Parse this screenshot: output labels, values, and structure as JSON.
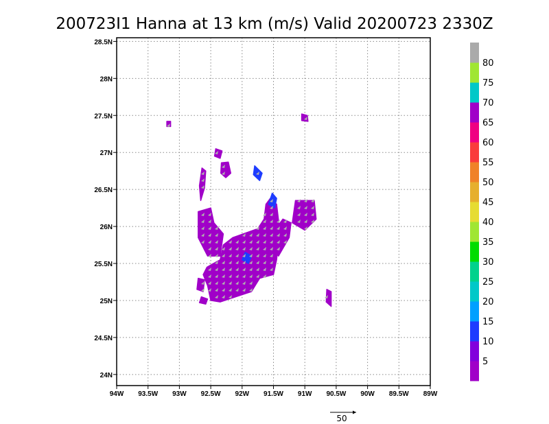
{
  "chart_data": {
    "type": "heatmap",
    "title": "200723I1 Hanna at 13 km (m/s) Valid 20200723 2330Z",
    "xlim": [
      -94,
      -89
    ],
    "ylim": [
      23.85,
      28.55
    ],
    "x_ticks": [
      {
        "value": -94,
        "label": "94W"
      },
      {
        "value": -93.5,
        "label": "93.5W"
      },
      {
        "value": -93,
        "label": "93W"
      },
      {
        "value": -92.5,
        "label": "92.5W"
      },
      {
        "value": -92,
        "label": "92W"
      },
      {
        "value": -91.5,
        "label": "91.5W"
      },
      {
        "value": -91,
        "label": "91W"
      },
      {
        "value": -90.5,
        "label": "90.5W"
      },
      {
        "value": -90,
        "label": "90W"
      },
      {
        "value": -89.5,
        "label": "89.5W"
      },
      {
        "value": -89,
        "label": "89W"
      }
    ],
    "y_ticks": [
      {
        "value": 24,
        "label": "24N"
      },
      {
        "value": 24.5,
        "label": "24.5N"
      },
      {
        "value": 25,
        "label": "25N"
      },
      {
        "value": 25.5,
        "label": "25.5N"
      },
      {
        "value": 26,
        "label": "26N"
      },
      {
        "value": 26.5,
        "label": "26.5N"
      },
      {
        "value": 27,
        "label": "27N"
      },
      {
        "value": 27.5,
        "label": "27.5N"
      },
      {
        "value": 28,
        "label": "28N"
      },
      {
        "value": 28.5,
        "label": "28.5N"
      }
    ],
    "grid": true,
    "colorbar": {
      "placement": "right",
      "bins": [
        {
          "min": 0,
          "max": 5,
          "color": "#a000c8"
        },
        {
          "min": 5,
          "max": 10,
          "color": "#8200dc"
        },
        {
          "min": 10,
          "max": 15,
          "color": "#1e3cff"
        },
        {
          "min": 15,
          "max": 20,
          "color": "#00a0ff"
        },
        {
          "min": 20,
          "max": 25,
          "color": "#00c8c8"
        },
        {
          "min": 25,
          "max": 30,
          "color": "#00d28c"
        },
        {
          "min": 30,
          "max": 35,
          "color": "#00dc00"
        },
        {
          "min": 35,
          "max": 40,
          "color": "#a0e632"
        },
        {
          "min": 40,
          "max": 45,
          "color": "#e6dc32"
        },
        {
          "min": 45,
          "max": 50,
          "color": "#e6af2d"
        },
        {
          "min": 50,
          "max": 55,
          "color": "#f08228"
        },
        {
          "min": 55,
          "max": 60,
          "color": "#fa3c3c"
        },
        {
          "min": 60,
          "max": 65,
          "color": "#f00082"
        },
        {
          "min": 65,
          "max": 70,
          "color": "#a000c8"
        },
        {
          "min": 70,
          "max": 75,
          "color": "#00c8c8"
        },
        {
          "min": 75,
          "max": 80,
          "color": "#a0e632"
        },
        {
          "min": 80,
          "max": 85,
          "color": "#aaaaaa"
        }
      ],
      "labels": [
        "5",
        "10",
        "15",
        "20",
        "25",
        "30",
        "35",
        "40",
        "45",
        "50",
        "55",
        "60",
        "65",
        "70",
        "75",
        "80"
      ]
    },
    "regions": [
      {
        "poly": [
          [
            -92.56,
            25.45
          ],
          [
            -92.35,
            25.55
          ],
          [
            -92.3,
            25.75
          ],
          [
            -92.15,
            25.85
          ],
          [
            -91.75,
            25.97
          ],
          [
            -91.65,
            26.1
          ],
          [
            -91.62,
            26.3
          ],
          [
            -91.55,
            26.38
          ],
          [
            -91.45,
            26.3
          ],
          [
            -91.4,
            25.95
          ],
          [
            -91.45,
            25.55
          ],
          [
            -91.5,
            25.35
          ],
          [
            -91.72,
            25.3
          ],
          [
            -91.85,
            25.12
          ],
          [
            -92.1,
            25.05
          ],
          [
            -92.35,
            24.98
          ],
          [
            -92.5,
            25.0
          ],
          [
            -92.55,
            25.2
          ],
          [
            -92.62,
            25.35
          ]
        ],
        "value": 4
      },
      {
        "poly": [
          [
            -92.7,
            26.2
          ],
          [
            -92.5,
            26.25
          ],
          [
            -92.45,
            26.05
          ],
          [
            -92.3,
            25.9
          ],
          [
            -92.35,
            25.6
          ],
          [
            -92.55,
            25.6
          ],
          [
            -92.7,
            25.85
          ]
        ],
        "value": 4
      },
      {
        "poly": [
          [
            -91.35,
            26.1
          ],
          [
            -91.22,
            26.05
          ],
          [
            -91.25,
            25.85
          ],
          [
            -91.42,
            25.6
          ],
          [
            -91.52,
            25.7
          ],
          [
            -91.48,
            25.95
          ]
        ],
        "value": 4
      },
      {
        "poly": [
          [
            -91.15,
            26.35
          ],
          [
            -90.85,
            26.35
          ],
          [
            -90.82,
            26.1
          ],
          [
            -91.0,
            25.95
          ],
          [
            -91.2,
            26.05
          ]
        ],
        "value": 4
      },
      {
        "poly": [
          [
            -92.64,
            26.79
          ],
          [
            -92.58,
            26.75
          ],
          [
            -92.6,
            26.52
          ],
          [
            -92.66,
            26.35
          ],
          [
            -92.68,
            26.55
          ]
        ],
        "value": 4
      },
      {
        "poly": [
          [
            -92.33,
            26.86
          ],
          [
            -92.22,
            26.87
          ],
          [
            -92.18,
            26.72
          ],
          [
            -92.26,
            26.66
          ],
          [
            -92.34,
            26.72
          ]
        ],
        "value": 4
      },
      {
        "poly": [
          [
            -92.42,
            27.05
          ],
          [
            -92.32,
            27.02
          ],
          [
            -92.35,
            26.92
          ],
          [
            -92.44,
            26.95
          ]
        ],
        "value": 4
      },
      {
        "poly": [
          [
            -91.52,
            26.45
          ],
          [
            -91.45,
            26.38
          ],
          [
            -91.48,
            26.25
          ],
          [
            -91.58,
            26.3
          ]
        ],
        "value": 12
      },
      {
        "poly": [
          [
            -91.8,
            26.82
          ],
          [
            -91.68,
            26.72
          ],
          [
            -91.72,
            26.62
          ],
          [
            -91.82,
            26.7
          ]
        ],
        "value": 12
      },
      {
        "poly": [
          [
            -91.95,
            25.65
          ],
          [
            -91.85,
            25.6
          ],
          [
            -91.9,
            25.5
          ],
          [
            -92.0,
            25.55
          ]
        ],
        "value": 12
      },
      {
        "poly": [
          [
            -90.65,
            25.15
          ],
          [
            -90.58,
            25.12
          ],
          [
            -90.58,
            24.92
          ],
          [
            -90.66,
            24.98
          ]
        ],
        "value": 4
      },
      {
        "poly": [
          [
            -92.7,
            25.3
          ],
          [
            -92.6,
            25.28
          ],
          [
            -92.62,
            25.12
          ],
          [
            -92.72,
            25.15
          ]
        ],
        "value": 4
      },
      {
        "poly": [
          [
            -92.65,
            25.05
          ],
          [
            -92.55,
            25.02
          ],
          [
            -92.58,
            24.95
          ],
          [
            -92.68,
            24.97
          ]
        ],
        "value": 4
      },
      {
        "poly": [
          [
            -93.2,
            27.42
          ],
          [
            -93.14,
            27.42
          ],
          [
            -93.14,
            27.35
          ],
          [
            -93.2,
            27.35
          ]
        ],
        "value": 4
      },
      {
        "poly": [
          [
            -91.05,
            27.52
          ],
          [
            -90.96,
            27.5
          ],
          [
            -90.95,
            27.42
          ],
          [
            -91.05,
            27.43
          ]
        ],
        "value": 4
      }
    ],
    "vectors": {
      "reference_label": "50",
      "reference_value": 50
    }
  }
}
